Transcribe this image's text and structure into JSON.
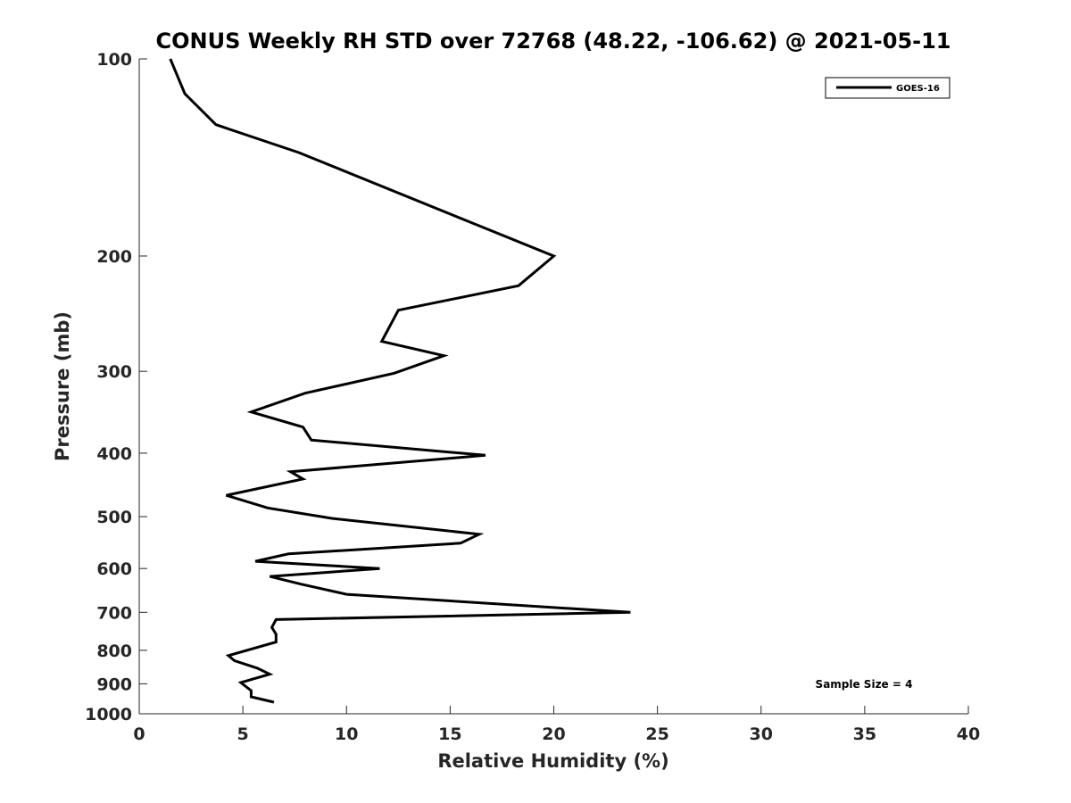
{
  "chart_data": {
    "type": "line",
    "title": "CONUS Weekly RH STD over 72768 (48.22, -106.62) @ 2021-05-11",
    "xlabel": "Relative Humidity (%)",
    "ylabel": "Pressure (mb)",
    "xlim": [
      0,
      40
    ],
    "ylim": [
      100,
      1000
    ],
    "y_scale": "log",
    "y_reversed": true,
    "xticks": [
      0,
      5,
      10,
      15,
      20,
      25,
      30,
      35,
      40
    ],
    "yticks": [
      100,
      200,
      300,
      400,
      500,
      600,
      700,
      800,
      900,
      1000
    ],
    "grid": false,
    "legend_position": "top-right",
    "series": [
      {
        "name": "GOES-16",
        "color": "#000000",
        "x": [
          1.5,
          2.2,
          3.7,
          7.7,
          20.0,
          18.3,
          12.5,
          11.7,
          14.7,
          12.3,
          8.0,
          5.4,
          7.9,
          8.3,
          16.7,
          7.3,
          7.9,
          4.2,
          6.2,
          9.3,
          16.4,
          15.5,
          7.2,
          5.6,
          11.6,
          6.3,
          7.8,
          10.0,
          23.7,
          6.6,
          6.4,
          6.6,
          6.6,
          4.3,
          4.6,
          5.7,
          6.3,
          4.9,
          5.4,
          5.4,
          6.5
        ],
        "y": [
          100,
          113,
          126,
          139,
          200,
          222,
          242,
          270,
          284,
          302,
          324,
          346,
          365,
          382,
          403,
          427,
          438,
          464,
          485,
          503,
          532,
          549,
          570,
          585,
          600,
          617,
          634,
          657,
          700,
          718,
          738,
          756,
          777,
          815,
          830,
          852,
          870,
          896,
          922,
          942,
          960
        ]
      }
    ],
    "annotations": [
      "Sample Size = 4"
    ]
  }
}
